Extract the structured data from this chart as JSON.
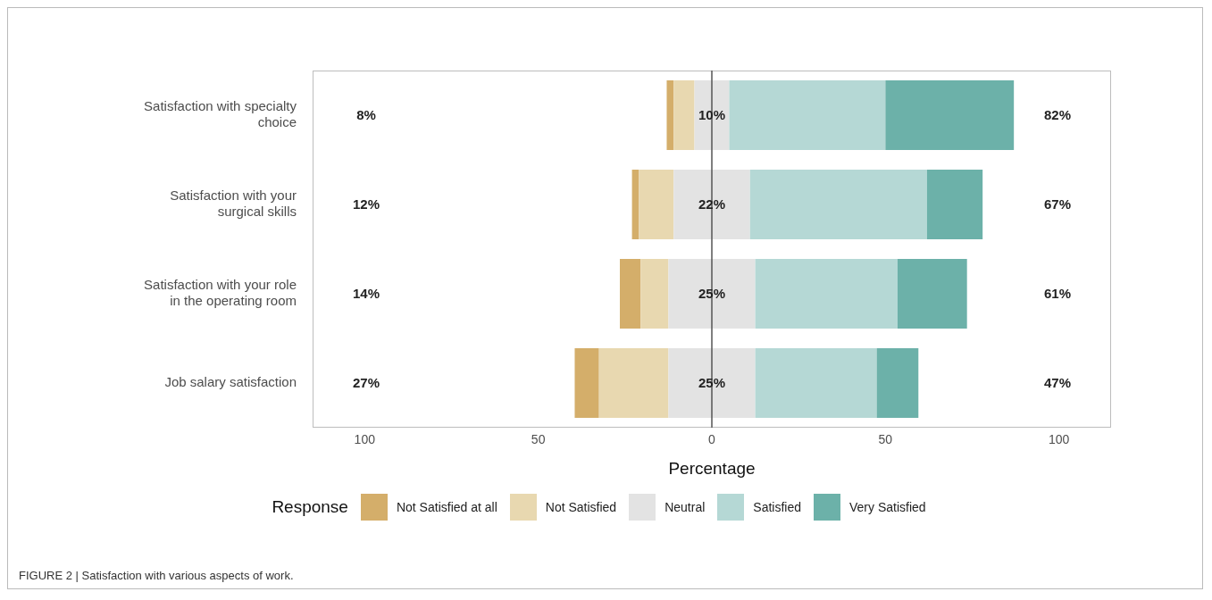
{
  "chart_data": {
    "type": "bar",
    "orientation": "horizontal",
    "categories": [
      "Satisfaction with specialty choice",
      "Satisfaction with your surgical skills",
      "Satisfaction with your role in the operating room",
      "Job salary satisfaction"
    ],
    "series": [
      {
        "name": "Not Satisfied at all",
        "color": "#d4ae6a",
        "values": [
          2,
          2,
          6,
          7
        ],
        "base": [
          -13,
          -23,
          -26.5,
          -39.5
        ]
      },
      {
        "name": "Not Satisfied",
        "color": "#e8d8b0",
        "values": [
          6,
          10,
          8,
          20
        ],
        "base": [
          -11,
          -21,
          -20.5,
          -32.5
        ]
      },
      {
        "name": "Neutral",
        "color": "#e3e3e3",
        "values": [
          10,
          22,
          25,
          25
        ],
        "base": [
          -5,
          -11,
          -12.5,
          -12.5
        ]
      },
      {
        "name": "Satisfied",
        "color": "#b5d8d5",
        "values": [
          45,
          51,
          41,
          35
        ],
        "base": [
          5,
          11,
          12.5,
          12.5
        ]
      },
      {
        "name": "Very Satisfied",
        "color": "#6cb1a9",
        "values": [
          37,
          16,
          20,
          12
        ],
        "base": [
          50,
          62,
          53.5,
          47.5
        ]
      }
    ],
    "xlim": [
      -115,
      115
    ],
    "xticks": [
      {
        "value": -100,
        "label": "100"
      },
      {
        "value": -50,
        "label": "50"
      },
      0,
      50,
      100
    ],
    "xlabel": "Percentage",
    "legend_title": "Response",
    "legend": "bottom",
    "grid": false,
    "ref_lines": [
      {
        "axis": "x",
        "value": 0,
        "color": "#555555"
      }
    ],
    "annotations": [
      "8%",
      "10%",
      "82%",
      "12%",
      "22%",
      "67%",
      "14%",
      "25%",
      "61%",
      "27%",
      "25%",
      "47%",
      "FIGURE 2 | Satisfaction with various aspects of work."
    ]
  }
}
